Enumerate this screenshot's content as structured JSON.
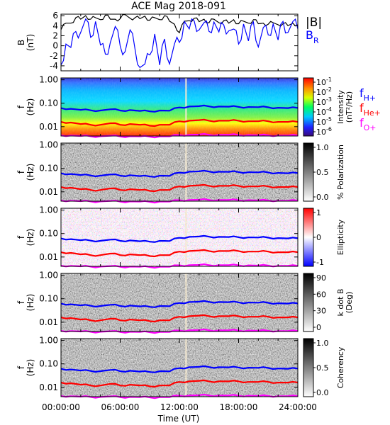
{
  "title": "ACE Mag 2018-091",
  "x_axis": {
    "ticks": [
      "00:00:00",
      "06:00:00",
      "12:00:00",
      "18:00:00",
      "24:00:00"
    ],
    "label": "Time (UT)"
  },
  "colors": {
    "total_field": "#000000",
    "radial_field": "#0000ff",
    "f_h": "#0000ff",
    "f_he": "#ff0000",
    "f_o": "#ff00ff"
  },
  "legend": {
    "b_total": "|B|",
    "b_r_main": "B",
    "b_r_sub": "R",
    "f_main": "f",
    "h_sub": "H+",
    "he_sub": "He+",
    "o_sub": "O+"
  },
  "panels": [
    {
      "key": "field",
      "ylabel": [
        "B",
        "(nT)"
      ],
      "yticks": [
        "6",
        "4",
        "2",
        "0",
        "-2",
        "-4"
      ],
      "colorbar": null
    },
    {
      "key": "intensity",
      "ylabel": [
        "f",
        "(Hz)"
      ],
      "yticks": [
        "1.00",
        "0.10",
        "0.01"
      ],
      "colorbar": {
        "palette": "rainbow",
        "ticks": [
          {
            "base": "10",
            "exp": "-1"
          },
          {
            "base": "10",
            "exp": "-2"
          },
          {
            "base": "10",
            "exp": "-3"
          },
          {
            "base": "10",
            "exp": "-4"
          },
          {
            "base": "10",
            "exp": "-5"
          },
          {
            "base": "10",
            "exp": "-6"
          }
        ],
        "label": [
          "Intensity",
          "(nT²/Hz)"
        ]
      }
    },
    {
      "key": "polarization",
      "ylabel": [
        "f",
        "(Hz)"
      ],
      "yticks": [
        "1.00",
        "0.10",
        "0.01"
      ],
      "colorbar": {
        "palette": "grey",
        "ticks": [
          "1.0",
          "0.5",
          "0.0"
        ],
        "label": [
          "% Polarization"
        ]
      }
    },
    {
      "key": "ellipticity",
      "ylabel": [
        "f",
        "(Hz)"
      ],
      "yticks": [
        "1.00",
        "0.10",
        "0.01"
      ],
      "colorbar": {
        "palette": "bwr",
        "ticks": [
          "1",
          "0",
          "-1"
        ],
        "label": [
          "Ellipticity"
        ]
      }
    },
    {
      "key": "kdotb",
      "ylabel": [
        "f",
        "(Hz)"
      ],
      "yticks": [
        "1.00",
        "0.10",
        "0.01"
      ],
      "colorbar": {
        "palette": "grey",
        "ticks": [
          "90",
          "60",
          "30",
          "0"
        ],
        "label": [
          "k dot B",
          "(Deg)"
        ]
      }
    },
    {
      "key": "coherency",
      "ylabel": [
        "f",
        "(Hz)"
      ],
      "yticks": [
        "1.00",
        "0.10",
        "0.01"
      ],
      "colorbar": {
        "palette": "grey",
        "ticks": [
          "1.0",
          "0.5",
          "0.0"
        ],
        "label": [
          "Coherency"
        ]
      }
    }
  ],
  "chart_data": {
    "type": "line",
    "title": "ACE Mag 2018-091",
    "xlabel": "Time (UT)",
    "x_ticks": [
      "00:00:00",
      "06:00:00",
      "12:00:00",
      "18:00:00",
      "24:00:00"
    ],
    "xlim_hours": [
      0,
      24
    ],
    "field_panel": {
      "ylabel": "B (nT)",
      "ylim": [
        -5,
        6.3
      ],
      "x_hours": [
        0,
        0.5,
        1,
        1.5,
        2,
        2.5,
        3,
        3.5,
        4,
        4.5,
        5,
        5.5,
        6,
        6.5,
        7,
        7.5,
        8,
        8.5,
        9,
        9.5,
        10,
        10.5,
        11,
        11.5,
        12,
        12.5,
        13,
        13.5,
        14,
        14.5,
        15,
        15.5,
        16,
        16.5,
        17,
        17.5,
        18,
        18.5,
        19,
        19.5,
        20,
        20.5,
        21,
        21.5,
        22,
        22.5,
        23,
        23.5,
        24
      ],
      "series": [
        {
          "name": "|B|",
          "values": [
            3.5,
            4.2,
            4.8,
            5.3,
            5.6,
            5.7,
            5.6,
            5.3,
            5.5,
            5.8,
            5.6,
            5.0,
            5.7,
            5.9,
            5.8,
            5.3,
            5.7,
            5.6,
            5.4,
            5.3,
            5.5,
            5.7,
            5.2,
            4.0,
            2.9,
            4.6,
            5.3,
            5.2,
            5.1,
            5.0,
            4.9,
            5.0,
            4.9,
            4.7,
            4.8,
            4.9,
            4.7,
            4.6,
            4.8,
            4.9,
            4.7,
            4.2,
            4.6,
            4.3,
            4.5,
            4.1,
            4.3,
            4.2,
            4.5
          ]
        },
        {
          "name": "B_R",
          "values": [
            -3.0,
            -0.5,
            0.5,
            2.0,
            3.5,
            4.5,
            2.5,
            4.0,
            1.0,
            -2.5,
            1.5,
            3.0,
            0.8,
            -2.0,
            4.0,
            -1.5,
            -3.5,
            -4.5,
            -1.0,
            1.5,
            -3.0,
            0.5,
            -2.8,
            -0.5,
            1.5,
            4.0,
            4.2,
            4.1,
            4.0,
            3.8,
            3.7,
            3.9,
            3.6,
            3.3,
            3.8,
            2.5,
            1.2,
            3.5,
            1.8,
            3.9,
            0.6,
            2.8,
            3.0,
            3.5,
            2.0,
            4.0,
            3.5,
            4.0,
            4.2
          ]
        }
      ]
    },
    "frequency_panels": {
      "ylabel": "f (Hz)",
      "y_scale": "log",
      "ylim": [
        0.004,
        1.2
      ],
      "x_hours": [
        0,
        1,
        2,
        3,
        4,
        5,
        6,
        7,
        8,
        9,
        10,
        11,
        12,
        13,
        14,
        15,
        16,
        17,
        18,
        19,
        20,
        21,
        22,
        23,
        24
      ],
      "series": [
        {
          "name": "fH+",
          "values": [
            0.062,
            0.058,
            0.052,
            0.05,
            0.049,
            0.055,
            0.049,
            0.051,
            0.047,
            0.045,
            0.049,
            0.048,
            0.066,
            0.072,
            0.075,
            0.073,
            0.072,
            0.071,
            0.07,
            0.069,
            0.068,
            0.067,
            0.064,
            0.062,
            0.063
          ]
        },
        {
          "name": "fHe+",
          "values": [
            0.016,
            0.015,
            0.013,
            0.012,
            0.012,
            0.014,
            0.012,
            0.013,
            0.012,
            0.011,
            0.012,
            0.012,
            0.017,
            0.018,
            0.019,
            0.018,
            0.018,
            0.018,
            0.018,
            0.017,
            0.017,
            0.017,
            0.016,
            0.016,
            0.016
          ]
        },
        {
          "name": "fO+",
          "values": [
            0.0043,
            0.0042,
            0.004,
            0.0039,
            0.0039,
            0.0041,
            0.0038,
            0.0039,
            0.0038,
            0.0037,
            0.0038,
            0.0038,
            0.0044,
            0.0045,
            0.0046,
            0.0045,
            0.0045,
            0.0045,
            0.0044,
            0.0044,
            0.0043,
            0.0043,
            0.0042,
            0.0042,
            0.0042
          ]
        }
      ]
    }
  }
}
